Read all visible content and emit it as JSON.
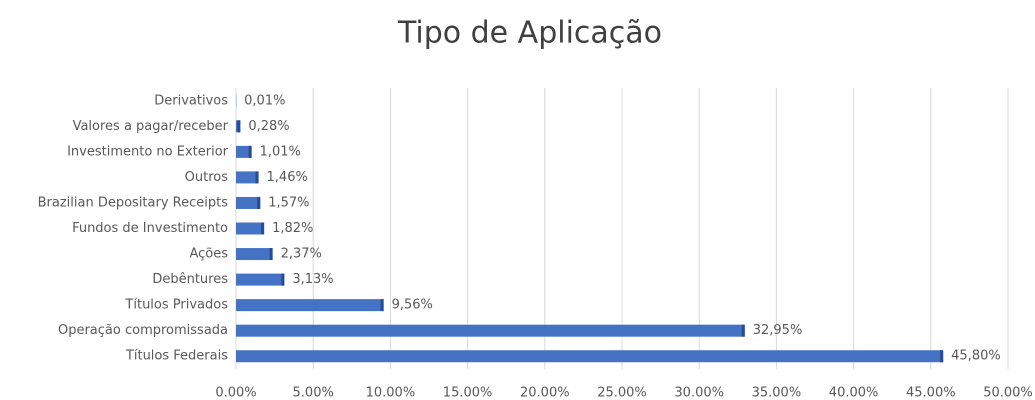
{
  "chart_data": {
    "type": "bar",
    "orientation": "horizontal",
    "title": "Tipo de Aplicação",
    "categories": [
      "Derivativos",
      "Valores a pagar/receber",
      "Investimento no Exterior",
      "Outros",
      "Brazilian Depositary Receipts",
      "Fundos de Investimento",
      "Ações",
      "Debêntures",
      "Títulos Privados",
      "Operação compromissada",
      "Títulos Federais"
    ],
    "values": [
      0.01,
      0.28,
      1.01,
      1.46,
      1.57,
      1.82,
      2.37,
      3.13,
      9.56,
      32.95,
      45.8
    ],
    "value_labels": [
      "0,01%",
      "0,28%",
      "1,01%",
      "1,46%",
      "1,57%",
      "1,82%",
      "2,37%",
      "3,13%",
      "9,56%",
      "32,95%",
      "45,80%"
    ],
    "color": "#4472c4",
    "xlim": [
      0,
      50
    ],
    "xticks": [
      {
        "value": 0,
        "label": "0.00%"
      },
      {
        "value": 5,
        "label": "5.00%"
      },
      {
        "value": 10,
        "label": "10.00%"
      },
      {
        "value": 15,
        "label": "15.00%"
      },
      {
        "value": 20,
        "label": "20.00%"
      },
      {
        "value": 25,
        "label": "25.00%"
      },
      {
        "value": 30,
        "label": "30.00%"
      },
      {
        "value": 35,
        "label": "35.00%"
      },
      {
        "value": 40,
        "label": "40.00%"
      },
      {
        "value": 45,
        "label": "45.00%"
      },
      {
        "value": 50,
        "label": "50.00%"
      }
    ],
    "grid": true
  }
}
